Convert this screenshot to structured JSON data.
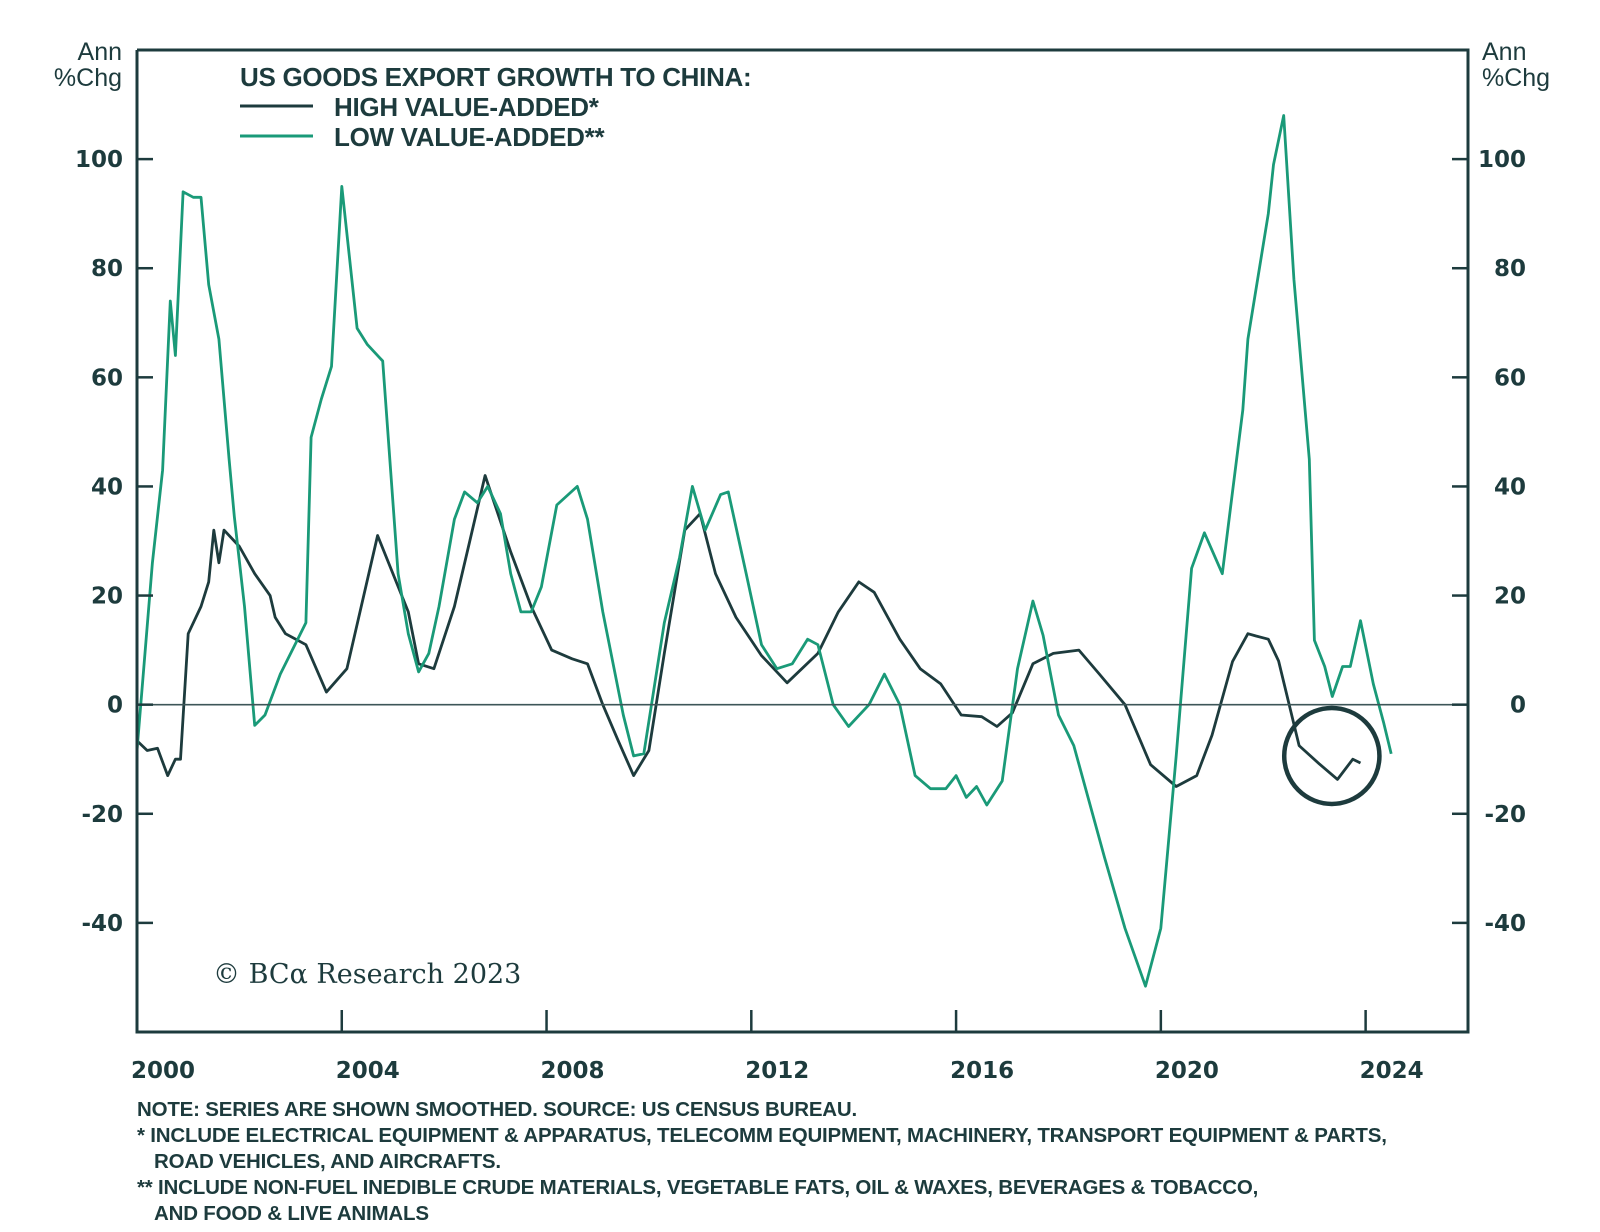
{
  "chart_data": {
    "type": "line",
    "title": "US GOODS EXPORT GROWTH TO CHINA:",
    "xlabel": "",
    "ylabel_left": "Ann %Chg",
    "ylabel_right": "Ann %Chg",
    "xlim": [
      2000,
      2026
    ],
    "ylim": [
      -60,
      120
    ],
    "x_ticks": [
      2000,
      2004,
      2008,
      2012,
      2016,
      2020,
      2024
    ],
    "x_tick_labels": [
      "2000",
      "2004",
      "2008",
      "2012",
      "2016",
      "2020",
      "2024"
    ],
    "y_ticks": [
      -40,
      -20,
      0,
      20,
      40,
      60,
      80,
      100
    ],
    "y_tick_labels": [
      "-40",
      "-20",
      "0",
      "20",
      "40",
      "60",
      "80",
      "100"
    ],
    "grid": false,
    "zero_line": true,
    "legend_position": "top-left",
    "series": [
      {
        "name": "HIGH VALUE-ADDED*",
        "color": "#1d3b3d",
        "points": [
          [
            2000.0,
            -6.6
          ],
          [
            2000.2,
            -8.4
          ],
          [
            2000.4,
            -8.0
          ],
          [
            2000.6,
            -13.0
          ],
          [
            2000.75,
            -10.0
          ],
          [
            2000.85,
            -10.0
          ],
          [
            2001.0,
            13.0
          ],
          [
            2001.25,
            18.0
          ],
          [
            2001.4,
            22.5
          ],
          [
            2001.5,
            32.0
          ],
          [
            2001.6,
            26.0
          ],
          [
            2001.7,
            32.0
          ],
          [
            2002.0,
            29.0
          ],
          [
            2002.3,
            24.0
          ],
          [
            2002.6,
            20.0
          ],
          [
            2002.7,
            16.0
          ],
          [
            2002.9,
            13.0
          ],
          [
            2003.3,
            11.0
          ],
          [
            2003.7,
            2.3
          ],
          [
            2004.1,
            6.6
          ],
          [
            2004.7,
            31.0
          ],
          [
            2005.3,
            17.0
          ],
          [
            2005.5,
            7.5
          ],
          [
            2005.8,
            6.6
          ],
          [
            2006.2,
            18.0
          ],
          [
            2006.5,
            30.0
          ],
          [
            2006.8,
            42.0
          ],
          [
            2007.3,
            28.0
          ],
          [
            2007.7,
            18.0
          ],
          [
            2008.1,
            10.0
          ],
          [
            2008.5,
            8.4
          ],
          [
            2008.8,
            7.5
          ],
          [
            2009.1,
            0.0
          ],
          [
            2009.4,
            -6.6
          ],
          [
            2009.7,
            -13.0
          ],
          [
            2010.0,
            -8.4
          ],
          [
            2010.3,
            9.4
          ],
          [
            2010.7,
            32.0
          ],
          [
            2011.0,
            35.0
          ],
          [
            2011.3,
            24.0
          ],
          [
            2011.7,
            16.0
          ],
          [
            2012.2,
            9.0
          ],
          [
            2012.7,
            4.0
          ],
          [
            2013.3,
            9.4
          ],
          [
            2013.7,
            17.0
          ],
          [
            2014.1,
            22.5
          ],
          [
            2014.4,
            20.6
          ],
          [
            2014.9,
            12.0
          ],
          [
            2015.3,
            6.6
          ],
          [
            2015.7,
            3.8
          ],
          [
            2016.1,
            -1.9
          ],
          [
            2016.5,
            -2.2
          ],
          [
            2016.8,
            -4.0
          ],
          [
            2017.1,
            -1.5
          ],
          [
            2017.5,
            7.5
          ],
          [
            2017.9,
            9.4
          ],
          [
            2018.4,
            10.0
          ],
          [
            2018.8,
            5.6
          ],
          [
            2019.3,
            0.0
          ],
          [
            2019.8,
            -11.0
          ],
          [
            2020.3,
            -15.0
          ],
          [
            2020.7,
            -13.0
          ],
          [
            2021.0,
            -5.6
          ],
          [
            2021.4,
            7.9
          ],
          [
            2021.7,
            13.0
          ],
          [
            2021.85,
            12.6
          ],
          [
            2022.1,
            12.0
          ],
          [
            2022.3,
            8.0
          ],
          [
            2022.7,
            -7.5
          ],
          [
            2023.1,
            -10.9
          ],
          [
            2023.45,
            -13.7
          ],
          [
            2023.75,
            -10.0
          ],
          [
            2023.9,
            -10.7
          ]
        ]
      },
      {
        "name": "LOW VALUE-ADDED**",
        "color": "#1a9a78",
        "points": [
          [
            2000.0,
            -8.4
          ],
          [
            2000.3,
            26.0
          ],
          [
            2000.5,
            43.0
          ],
          [
            2000.65,
            74.0
          ],
          [
            2000.75,
            64.0
          ],
          [
            2000.9,
            94.0
          ],
          [
            2001.1,
            93.0
          ],
          [
            2001.25,
            93.0
          ],
          [
            2001.4,
            77.0
          ],
          [
            2001.6,
            67.0
          ],
          [
            2001.8,
            45.0
          ],
          [
            2001.9,
            34.5
          ],
          [
            2002.1,
            18.0
          ],
          [
            2002.3,
            -3.8
          ],
          [
            2002.5,
            -1.9
          ],
          [
            2002.8,
            5.6
          ],
          [
            2003.3,
            15.0
          ],
          [
            2003.4,
            49.0
          ],
          [
            2003.6,
            56.0
          ],
          [
            2003.8,
            62.0
          ],
          [
            2004.0,
            95.0
          ],
          [
            2004.3,
            69.0
          ],
          [
            2004.5,
            66.0
          ],
          [
            2004.8,
            63.0
          ],
          [
            2005.1,
            24.0
          ],
          [
            2005.3,
            13.0
          ],
          [
            2005.5,
            6.0
          ],
          [
            2005.7,
            9.4
          ],
          [
            2005.9,
            18.0
          ],
          [
            2006.2,
            34.0
          ],
          [
            2006.4,
            39.0
          ],
          [
            2006.65,
            37.0
          ],
          [
            2006.85,
            40.0
          ],
          [
            2007.1,
            35.0
          ],
          [
            2007.3,
            24.0
          ],
          [
            2007.5,
            17.0
          ],
          [
            2007.7,
            17.0
          ],
          [
            2007.9,
            21.6
          ],
          [
            2008.2,
            36.6
          ],
          [
            2008.6,
            40.0
          ],
          [
            2008.8,
            34.0
          ],
          [
            2009.1,
            17.0
          ],
          [
            2009.5,
            -1.9
          ],
          [
            2009.7,
            -9.4
          ],
          [
            2009.9,
            -9.0
          ],
          [
            2010.3,
            15.0
          ],
          [
            2010.6,
            27.0
          ],
          [
            2010.85,
            40.0
          ],
          [
            2011.1,
            32.0
          ],
          [
            2011.4,
            38.5
          ],
          [
            2011.55,
            39.0
          ],
          [
            2011.9,
            24.0
          ],
          [
            2012.2,
            11.0
          ],
          [
            2012.5,
            6.6
          ],
          [
            2012.8,
            7.5
          ],
          [
            2013.1,
            12.0
          ],
          [
            2013.3,
            11.0
          ],
          [
            2013.6,
            0.0
          ],
          [
            2013.9,
            -4.0
          ],
          [
            2014.3,
            0.0
          ],
          [
            2014.6,
            5.6
          ],
          [
            2014.9,
            0.0
          ],
          [
            2015.2,
            -13.0
          ],
          [
            2015.5,
            -15.4
          ],
          [
            2015.8,
            -15.4
          ],
          [
            2016.0,
            -13.0
          ],
          [
            2016.2,
            -17.0
          ],
          [
            2016.4,
            -15.0
          ],
          [
            2016.6,
            -18.4
          ],
          [
            2016.9,
            -14.0
          ],
          [
            2017.2,
            6.6
          ],
          [
            2017.5,
            19.0
          ],
          [
            2017.7,
            12.7
          ],
          [
            2018.0,
            -1.9
          ],
          [
            2018.3,
            -7.5
          ],
          [
            2018.9,
            -28.0
          ],
          [
            2019.3,
            -41.0
          ],
          [
            2019.7,
            -51.6
          ],
          [
            2020.0,
            -41.0
          ],
          [
            2020.3,
            -9.4
          ],
          [
            2020.6,
            25.0
          ],
          [
            2020.85,
            31.5
          ],
          [
            2021.2,
            24.0
          ],
          [
            2021.4,
            39.0
          ],
          [
            2021.6,
            54.0
          ],
          [
            2021.7,
            67.0
          ],
          [
            2022.1,
            90.0
          ],
          [
            2022.2,
            99.0
          ],
          [
            2022.4,
            108.0
          ],
          [
            2022.6,
            78.0
          ],
          [
            2022.9,
            45.0
          ],
          [
            2023.0,
            11.8
          ],
          [
            2023.2,
            7.0
          ],
          [
            2023.35,
            1.5
          ],
          [
            2023.55,
            7.0
          ],
          [
            2023.7,
            7.0
          ],
          [
            2023.9,
            15.4
          ],
          [
            2024.15,
            3.8
          ],
          [
            2024.35,
            -3.2
          ],
          [
            2024.5,
            -9.0
          ]
        ]
      }
    ],
    "annotations": [
      {
        "type": "circle",
        "label": "highlighted recent period",
        "center": [
          2023.34,
          -9.4
        ],
        "radius_years": 0.93,
        "radius_value": 8.8
      }
    ],
    "copyright": "© BCα Research 2023"
  },
  "legend": {
    "title": "US GOODS EXPORT GROWTH TO CHINA:",
    "high": "HIGH VALUE-ADDED*",
    "low": "LOW VALUE-ADDED**"
  },
  "axis_units": {
    "line1": "Ann",
    "line2": "%Chg"
  },
  "copyright": "© BCα Research 2023",
  "notes": {
    "line1": "NOTE: SERIES ARE SHOWN SMOOTHED. SOURCE: US CENSUS BUREAU.",
    "line2": "*  INCLUDE ELECTRICAL EQUIPMENT & APPARATUS, TELECOMM EQUIPMENT, MACHINERY, TRANSPORT EQUIPMENT & PARTS,",
    "line3": "ROAD VEHICLES, AND AIRCRAFTS.",
    "line4": "** INCLUDE NON-FUEL INEDIBLE CRUDE MATERIALS, VEGETABLE FATS, OIL & WAXES, BEVERAGES & TOBACCO,",
    "line5": "AND FOOD & LIVE ANIMALS"
  }
}
